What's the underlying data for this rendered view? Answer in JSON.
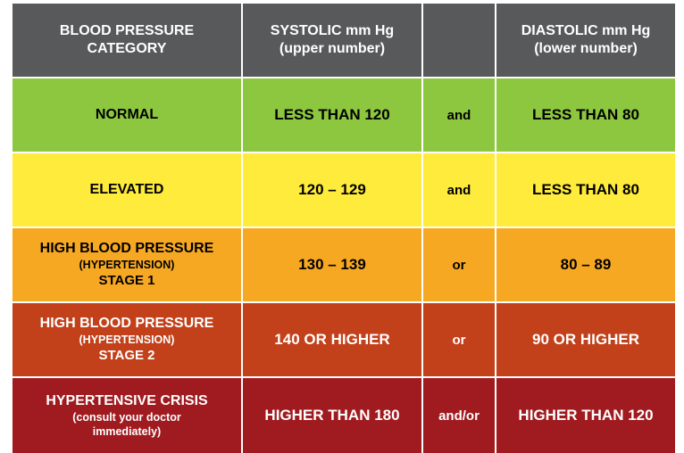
{
  "header": {
    "category": [
      "BLOOD PRESSURE",
      "CATEGORY"
    ],
    "systolic": [
      "SYSTOLIC mm Hg",
      "(upper number)"
    ],
    "connector": "",
    "diastolic": [
      "DIASTOLIC mm Hg",
      "(lower number)"
    ]
  },
  "colors": {
    "header": "#58595b",
    "normal": "#8dc63f",
    "elevated": "#ffeb3b",
    "stage1": "#f7a823",
    "stage2": "#c2401a",
    "crisis": "#a01b1f"
  },
  "rows": [
    {
      "category": [
        "NORMAL"
      ],
      "systolic": "LESS THAN 120",
      "connector": "and",
      "diastolic": "LESS THAN 80"
    },
    {
      "category": [
        "ELEVATED"
      ],
      "systolic": "120 – 129",
      "connector": "and",
      "diastolic": "LESS THAN 80"
    },
    {
      "category": [
        "HIGH BLOOD PRESSURE",
        "(HYPERTENSION)",
        "STAGE 1"
      ],
      "systolic": "130 – 139",
      "connector": "or",
      "diastolic": "80 – 89"
    },
    {
      "category": [
        "HIGH BLOOD PRESSURE",
        "(HYPERTENSION)",
        "STAGE 2"
      ],
      "systolic": "140 OR HIGHER",
      "connector": "or",
      "diastolic": "90 OR HIGHER"
    },
    {
      "category": [
        "HYPERTENSIVE CRISIS",
        "(consult your doctor",
        "immediately)"
      ],
      "systolic": "HIGHER THAN 180",
      "connector": "and/or",
      "diastolic": "HIGHER THAN 120"
    }
  ]
}
